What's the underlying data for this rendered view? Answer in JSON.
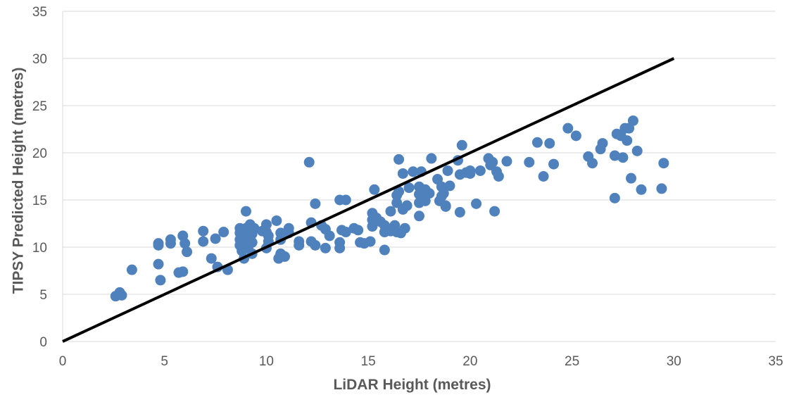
{
  "chart_data": {
    "type": "scatter",
    "xlabel": "LiDAR Height (metres)",
    "ylabel": "TIPSY Predicted Height (metres)",
    "xlim": [
      0,
      35
    ],
    "ylim": [
      0,
      35
    ],
    "x_ticks": [
      "0",
      "5",
      "10",
      "15",
      "20",
      "25",
      "30",
      "35"
    ],
    "y_ticks": [
      "0",
      "5",
      "10",
      "15",
      "20",
      "25",
      "30",
      "35"
    ],
    "grid": "horizontal",
    "legend": "none",
    "colors": {
      "points": "#4f81bd",
      "line": "#000000",
      "grid": "#d9d9d9",
      "text": "#595959"
    },
    "line": {
      "x": [
        0,
        30
      ],
      "y": [
        0,
        30
      ]
    },
    "points": [
      [
        2.6,
        4.8
      ],
      [
        2.8,
        5.2
      ],
      [
        2.9,
        4.9
      ],
      [
        3.4,
        7.6
      ],
      [
        4.7,
        10.4
      ],
      [
        4.7,
        10.2
      ],
      [
        4.7,
        8.2
      ],
      [
        4.8,
        6.5
      ],
      [
        5.3,
        10.8
      ],
      [
        5.3,
        10.4
      ],
      [
        5.7,
        7.3
      ],
      [
        5.9,
        7.4
      ],
      [
        5.9,
        11.2
      ],
      [
        6.0,
        10.4
      ],
      [
        6.1,
        9.5
      ],
      [
        6.9,
        11.7
      ],
      [
        6.9,
        10.6
      ],
      [
        7.3,
        8.8
      ],
      [
        7.5,
        10.9
      ],
      [
        7.6,
        7.9
      ],
      [
        7.9,
        11.6
      ],
      [
        8.1,
        7.6
      ],
      [
        8.7,
        12.0
      ],
      [
        8.7,
        11.5
      ],
      [
        8.7,
        10.8
      ],
      [
        8.7,
        10.2
      ],
      [
        8.8,
        9.6
      ],
      [
        8.9,
        8.8
      ],
      [
        9.0,
        13.8
      ],
      [
        9.0,
        12.0
      ],
      [
        9.1,
        11.1
      ],
      [
        9.1,
        10.4
      ],
      [
        9.1,
        9.9
      ],
      [
        9.2,
        12.4
      ],
      [
        9.3,
        11.4
      ],
      [
        9.3,
        10.5
      ],
      [
        9.3,
        9.3
      ],
      [
        9.4,
        12.0
      ],
      [
        9.8,
        11.7
      ],
      [
        10.0,
        12.4
      ],
      [
        10.0,
        11.6
      ],
      [
        10.0,
        9.9
      ],
      [
        10.1,
        11.2
      ],
      [
        10.1,
        10.6
      ],
      [
        10.5,
        12.8
      ],
      [
        10.6,
        8.8
      ],
      [
        10.7,
        10.8
      ],
      [
        10.7,
        9.3
      ],
      [
        10.7,
        11.5
      ],
      [
        10.9,
        9.0
      ],
      [
        11.1,
        12.0
      ],
      [
        11.1,
        11.5
      ],
      [
        11.6,
        10.6
      ],
      [
        11.6,
        10.2
      ],
      [
        12.1,
        19.0
      ],
      [
        12.2,
        12.6
      ],
      [
        12.2,
        10.6
      ],
      [
        12.4,
        14.6
      ],
      [
        12.4,
        10.2
      ],
      [
        12.7,
        12.3
      ],
      [
        12.9,
        11.9
      ],
      [
        12.9,
        9.9
      ],
      [
        13.1,
        11.2
      ],
      [
        13.6,
        15.0
      ],
      [
        13.6,
        10.5
      ],
      [
        13.6,
        9.9
      ],
      [
        13.7,
        11.8
      ],
      [
        13.9,
        15.0
      ],
      [
        13.9,
        11.6
      ],
      [
        14.3,
        12.0
      ],
      [
        14.5,
        11.8
      ],
      [
        14.6,
        10.5
      ],
      [
        14.8,
        10.4
      ],
      [
        15.1,
        10.6
      ],
      [
        15.2,
        13.6
      ],
      [
        15.2,
        12.9
      ],
      [
        15.2,
        12.2
      ],
      [
        15.3,
        16.1
      ],
      [
        15.4,
        13.1
      ],
      [
        15.6,
        12.7
      ],
      [
        15.8,
        12.3
      ],
      [
        15.8,
        11.6
      ],
      [
        15.8,
        9.7
      ],
      [
        16.1,
        13.8
      ],
      [
        16.1,
        11.7
      ],
      [
        16.3,
        12.3
      ],
      [
        16.4,
        15.5
      ],
      [
        16.4,
        14.7
      ],
      [
        16.4,
        11.6
      ],
      [
        16.5,
        19.3
      ],
      [
        16.5,
        15.9
      ],
      [
        16.6,
        11.5
      ],
      [
        16.7,
        17.8
      ],
      [
        16.7,
        14.0
      ],
      [
        16.8,
        12.0
      ],
      [
        16.9,
        14.4
      ],
      [
        17.0,
        16.3
      ],
      [
        17.2,
        18.0
      ],
      [
        17.5,
        16.4
      ],
      [
        17.5,
        15.6
      ],
      [
        17.5,
        14.7
      ],
      [
        17.5,
        13.3
      ],
      [
        17.6,
        18.0
      ],
      [
        17.6,
        15.8
      ],
      [
        17.8,
        16.1
      ],
      [
        17.8,
        14.9
      ],
      [
        18.0,
        15.7
      ],
      [
        18.1,
        19.4
      ],
      [
        18.4,
        17.2
      ],
      [
        18.5,
        14.9
      ],
      [
        18.6,
        16.4
      ],
      [
        18.6,
        15.4
      ],
      [
        18.7,
        15.7
      ],
      [
        18.8,
        14.4
      ],
      [
        18.8,
        14.3
      ],
      [
        18.9,
        18.1
      ],
      [
        19.0,
        16.5
      ],
      [
        19.4,
        19.2
      ],
      [
        19.5,
        17.7
      ],
      [
        19.5,
        13.7
      ],
      [
        19.6,
        20.8
      ],
      [
        19.8,
        17.9
      ],
      [
        20.0,
        17.8
      ],
      [
        20.0,
        18.1
      ],
      [
        20.3,
        14.6
      ],
      [
        20.5,
        18.1
      ],
      [
        20.9,
        19.4
      ],
      [
        21.0,
        18.7
      ],
      [
        21.1,
        19.0
      ],
      [
        21.2,
        13.8
      ],
      [
        21.3,
        18.0
      ],
      [
        21.4,
        17.5
      ],
      [
        21.8,
        19.1
      ],
      [
        22.9,
        19.0
      ],
      [
        23.3,
        21.1
      ],
      [
        23.6,
        17.5
      ],
      [
        23.9,
        21.0
      ],
      [
        24.1,
        18.8
      ],
      [
        24.8,
        22.6
      ],
      [
        25.2,
        21.8
      ],
      [
        25.8,
        19.6
      ],
      [
        26.0,
        18.9
      ],
      [
        26.4,
        20.4
      ],
      [
        26.5,
        21.0
      ],
      [
        27.1,
        19.7
      ],
      [
        27.1,
        15.2
      ],
      [
        27.2,
        22.0
      ],
      [
        27.4,
        21.8
      ],
      [
        27.5,
        19.5
      ],
      [
        27.6,
        22.6
      ],
      [
        27.7,
        21.3
      ],
      [
        27.8,
        22.6
      ],
      [
        27.9,
        17.3
      ],
      [
        28.0,
        23.4
      ],
      [
        28.2,
        20.2
      ],
      [
        28.4,
        16.1
      ],
      [
        29.4,
        16.2
      ],
      [
        29.5,
        18.9
      ]
    ]
  }
}
